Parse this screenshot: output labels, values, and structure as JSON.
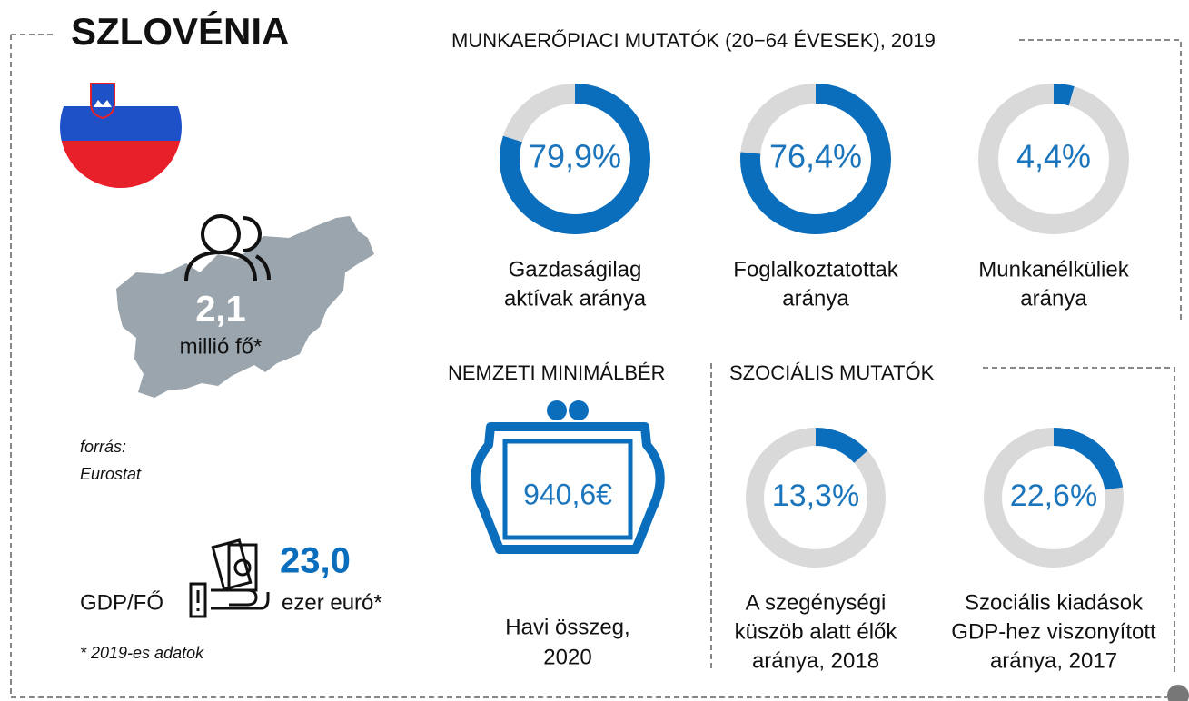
{
  "title": "SZLOVÉNIA",
  "population": {
    "value": "2,1",
    "unit": "millió fő*"
  },
  "source": {
    "label": "forrás:",
    "name": "Eurostat"
  },
  "gdp": {
    "label": "GDP/FŐ",
    "value": "23,0",
    "unit": "ezer euró*"
  },
  "footnote": "* 2019-es adatok",
  "labour": {
    "title": "MUNKAERŐPIACI MUTATÓK (20−64 ÉVESEK), 2019",
    "items": [
      {
        "value": 79.9,
        "value_label": "79,9%",
        "label": [
          "Gazdaságilag",
          "aktívak aránya"
        ]
      },
      {
        "value": 76.4,
        "value_label": "76,4%",
        "label": [
          "Foglalkoztatottak",
          "aránya"
        ]
      },
      {
        "value": 4.4,
        "value_label": "4,4%",
        "label": [
          "Munkanélküliek",
          "aránya"
        ]
      }
    ]
  },
  "wage": {
    "title": "NEMZETI MINIMÁLBÉR",
    "value": "940,6€",
    "label": [
      "Havi összeg,",
      "2020"
    ]
  },
  "social": {
    "title": "SZOCIÁLIS MUTATÓK",
    "items": [
      {
        "value": 13.3,
        "value_label": "13,3%",
        "label": [
          "A szegénységi",
          "küszöb alatt élők",
          "aránya, 2018"
        ]
      },
      {
        "value": 22.6,
        "value_label": "22,6%",
        "label": [
          "Szociális kiadások",
          "GDP-hez viszonyított",
          "aránya, 2017"
        ]
      }
    ]
  }
}
